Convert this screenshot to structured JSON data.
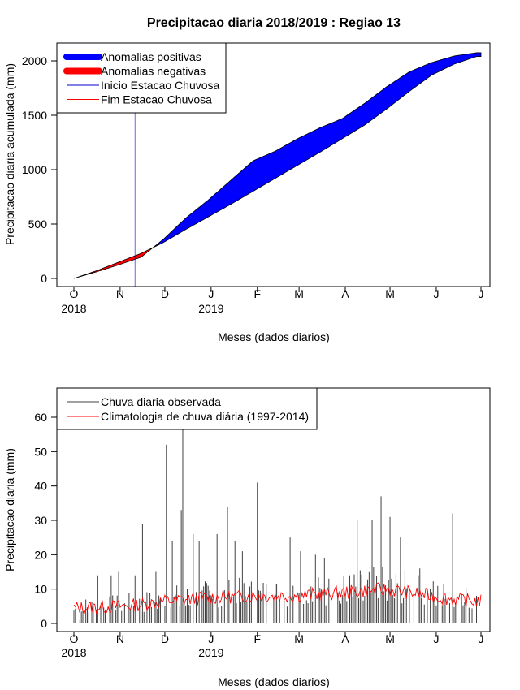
{
  "title": "Precipitacao diaria 2018/2019 : Regiao 13",
  "colors": {
    "positive": "#0000ff",
    "negative": "#ff0000",
    "onset_line": "#0000cd",
    "end_line": "#ff0000",
    "observed": "#404040",
    "climatology": "#ff0000"
  },
  "chart_data": [
    {
      "type": "area",
      "name": "cumulative",
      "xlabel": "Meses (dados diarios)",
      "ylabel": "Precipitacao diaria acumulada (mm)",
      "ylim": [
        0,
        2100
      ],
      "yticks": [
        0,
        500,
        1000,
        1500,
        2000
      ],
      "x_month_ticks": [
        "O",
        "N",
        "D",
        "J",
        "F",
        "M",
        "A",
        "M",
        "J",
        "J"
      ],
      "x_year_labels": [
        {
          "at_month": "O",
          "label": "2018"
        },
        {
          "at_month": "J",
          "label": "2019"
        }
      ],
      "legend": {
        "position": "top-left",
        "entries": [
          {
            "label": "Anomalias positivas",
            "color": "positive",
            "style": "thick"
          },
          {
            "label": "Anomalias negativas",
            "color": "negative",
            "style": "thick"
          },
          {
            "label": "Inicio Estacao Chuvosa",
            "color": "onset_line",
            "style": "thin"
          },
          {
            "label": "Fim Estacao Chuvosa",
            "color": "end_line",
            "style": "thin"
          }
        ]
      },
      "onset_day": 41,
      "observed_cumulative": {
        "day": [
          0,
          15,
          30,
          45,
          60,
          75,
          90,
          105,
          120,
          135,
          150,
          165,
          180,
          195,
          210,
          225,
          240,
          255,
          270
        ],
        "value": [
          0,
          60,
          125,
          195,
          360,
          555,
          720,
          900,
          1080,
          1170,
          1285,
          1385,
          1470,
          1610,
          1765,
          1900,
          1985,
          2045,
          2075
        ]
      },
      "climatology_cumulative": {
        "day": [
          0,
          15,
          30,
          45,
          60,
          75,
          90,
          105,
          120,
          135,
          150,
          165,
          180,
          195,
          210,
          225,
          240,
          255,
          270
        ],
        "value": [
          0,
          70,
          150,
          230,
          330,
          450,
          565,
          680,
          800,
          920,
          1040,
          1160,
          1285,
          1410,
          1560,
          1720,
          1870,
          1970,
          2040
        ]
      }
    },
    {
      "type": "bar",
      "name": "daily",
      "xlabel": "Meses (dados diarios)",
      "ylabel": "Precipitacao diaria (mm)",
      "ylim": [
        0,
        68
      ],
      "yticks": [
        0,
        10,
        20,
        30,
        40,
        50,
        60
      ],
      "x_month_ticks": [
        "O",
        "N",
        "D",
        "J",
        "F",
        "M",
        "A",
        "M",
        "J",
        "J"
      ],
      "x_year_labels": [
        {
          "at_month": "O",
          "label": "2018"
        },
        {
          "at_month": "J",
          "label": "2019"
        }
      ],
      "legend": {
        "position": "top-left",
        "entries": [
          {
            "label": "Chuva diaria observada",
            "color": "observed",
            "style": "thin"
          },
          {
            "label": "Climatologia de chuva diária (1997-2014)",
            "color": "climatology",
            "style": "thin"
          }
        ]
      },
      "observed_daily_peaks": {
        "day": [
          4,
          16,
          25,
          30,
          41,
          46,
          55,
          62,
          66,
          72,
          73,
          80,
          84,
          96,
          103,
          108,
          113,
          123,
          145,
          152,
          162,
          168,
          190,
          200,
          206,
          212,
          219,
          232,
          254
        ],
        "value": [
          1,
          14,
          14,
          15,
          14,
          29,
          15,
          52,
          24,
          33,
          58,
          26,
          24,
          26,
          34,
          24,
          21,
          41,
          25,
          21,
          20,
          19,
          30,
          30,
          37,
          31,
          25,
          16,
          32
        ]
      },
      "climatology_daily": {
        "day": [
          0,
          15,
          30,
          45,
          60,
          75,
          90,
          105,
          120,
          135,
          150,
          165,
          180,
          195,
          210,
          225,
          240,
          255,
          270
        ],
        "value": [
          4.5,
          4.8,
          5.0,
          5.5,
          6.5,
          7.0,
          7.5,
          7.8,
          8.0,
          8.0,
          8.2,
          8.5,
          9.0,
          9.5,
          10.0,
          9.0,
          8.0,
          7.0,
          6.5
        ]
      }
    }
  ]
}
